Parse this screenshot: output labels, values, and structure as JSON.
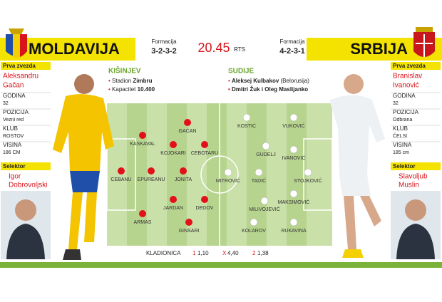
{
  "header": {
    "home_team": "MOLDAVIJA",
    "away_team": "SRBIJA",
    "home_formation_label": "Formacija",
    "home_formation": "3-2-3-2",
    "time": "20.45",
    "broadcaster": "RTS",
    "away_formation_label": "Formacija",
    "away_formation": "4-2-3-1"
  },
  "venue": {
    "city": "KIŠINJEV",
    "stadium_label": "Stadion",
    "stadium": "Zimbru",
    "capacity_label": "Kapacitet",
    "capacity": "10.400"
  },
  "referees": {
    "title": "SUDIJE",
    "main": "Aleksej Kulbakov",
    "main_country": "(Belorusija)",
    "assistants": "Dmitri Žuk i Oleg Maslijanko"
  },
  "home_star": {
    "title": "Prva zvezda",
    "first_name": "Aleksandru",
    "last_name": "Gačan",
    "stats": [
      {
        "label": "GODINA",
        "value": "32"
      },
      {
        "label": "POZICIJA",
        "value": "Vezni red"
      },
      {
        "label": "KLUB",
        "value": "ROSTOV"
      },
      {
        "label": "VISINA",
        "value": "186 CM"
      }
    ],
    "coach_title": "Selektor",
    "coach_first": "Igor",
    "coach_last": "Dobrovoljski"
  },
  "away_star": {
    "title": "Prva zvezda",
    "first_name": "Branislav",
    "last_name": "Ivanović",
    "stats": [
      {
        "label": "GODINA",
        "value": "32"
      },
      {
        "label": "POZICIJA",
        "value": "Odbrana"
      },
      {
        "label": "KLUB",
        "value": "ČELSI"
      },
      {
        "label": "VISINA",
        "value": "185 cm"
      }
    ],
    "coach_title": "Selektor",
    "coach_first": "Slavoljub",
    "coach_last": "Muslin"
  },
  "home_lineup": [
    "KASKAVAL",
    "GAČAN",
    "KOJOKARI",
    "CEBOTARU",
    "CEBANU",
    "EPUREANU",
    "JONITA",
    "JARDAN",
    "DEDOV",
    "ARMAS",
    "GINSARI"
  ],
  "away_lineup": [
    "KOSTIĆ",
    "VUKOVIĆ",
    "GUDELJ",
    "IVANOVIĆ",
    "MITROVIĆ",
    "TADIĆ",
    "STOJKOVIĆ",
    "MILIVOJEVIĆ",
    "MAKSIMOVIĆ",
    "KOLAROV",
    "RUKAVINA"
  ],
  "odds": {
    "title": "KLADIONICA",
    "items": [
      {
        "mark": "1",
        "value": "1,10"
      },
      {
        "mark": "X",
        "value": "4,40"
      },
      {
        "mark": "2",
        "value": "1,38"
      }
    ]
  }
}
